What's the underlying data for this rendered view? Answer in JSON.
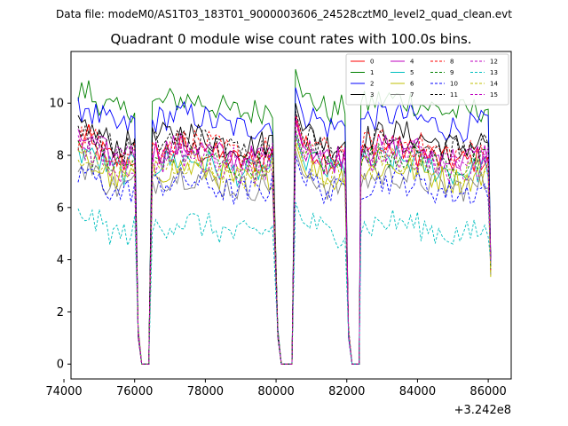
{
  "chart_data": {
    "type": "line",
    "suptitle": "Data file: modeM0/AS1T03_183T01_9000003606_24528cztM0_level2_quad_clean.evt",
    "title": "Quadrant 0 module wise count rates with 100.0s bins.",
    "xlabel": "",
    "ylabel": "",
    "x_offset_label": "+3.242e8",
    "xlim": [
      74200,
      86650
    ],
    "ylim": [
      -0.57,
      11.98
    ],
    "x_ticks": [
      74000,
      76000,
      78000,
      80000,
      82000,
      84000,
      86000
    ],
    "x_tick_labels": [
      "74000",
      "76000",
      "78000",
      "80000",
      "82000",
      "84000",
      "86000"
    ],
    "y_ticks": [
      0,
      2,
      4,
      6,
      8,
      10
    ],
    "y_tick_labels": [
      "0",
      "2",
      "4",
      "6",
      "8",
      "10"
    ],
    "legend_position": "top-right",
    "bins_seconds": 100.0,
    "orbit_segments": [
      {
        "start": 74400,
        "end": 76000,
        "next_gap_end": 76500
      },
      {
        "start": 76500,
        "end": 79950,
        "next_gap_end": 80550
      },
      {
        "start": 80550,
        "end": 81950,
        "next_gap_end": 82400
      },
      {
        "start": 82400,
        "end": 86050,
        "next_gap_end": null
      }
    ],
    "saa_gaps": [
      [
        76100,
        76500
      ],
      [
        80050,
        80500
      ],
      [
        82050,
        82400
      ]
    ],
    "series": [
      {
        "name": "0",
        "color": "#ff0000",
        "dash": "solid",
        "mean": 8.0,
        "peak": 9.4
      },
      {
        "name": "1",
        "color": "#008000",
        "dash": "solid",
        "mean": 9.9,
        "peak": 11.3
      },
      {
        "name": "2",
        "color": "#0000ff",
        "dash": "solid",
        "mean": 9.3,
        "peak": 10.6
      },
      {
        "name": "3",
        "color": "#000000",
        "dash": "solid",
        "mean": 8.6,
        "peak": 10.0
      },
      {
        "name": "4",
        "color": "#bf00bf",
        "dash": "solid",
        "mean": 8.1,
        "peak": 9.5
      },
      {
        "name": "5",
        "color": "#00bfbf",
        "dash": "solid",
        "mean": 7.6,
        "peak": 8.8
      },
      {
        "name": "6",
        "color": "#bfbf00",
        "dash": "solid",
        "mean": 7.3,
        "peak": 8.5
      },
      {
        "name": "7",
        "color": "#808080",
        "dash": "solid",
        "mean": 7.0,
        "peak": 8.2
      },
      {
        "name": "8",
        "color": "#ff0000",
        "dash": "dashed",
        "mean": 8.3,
        "peak": 9.6
      },
      {
        "name": "9",
        "color": "#008000",
        "dash": "dashed",
        "mean": 7.8,
        "peak": 9.0
      },
      {
        "name": "10",
        "color": "#0000ff",
        "dash": "dashed",
        "mean": 6.8,
        "peak": 8.0
      },
      {
        "name": "11",
        "color": "#000000",
        "dash": "dashed",
        "mean": 8.4,
        "peak": 9.7
      },
      {
        "name": "12",
        "color": "#bf00bf",
        "dash": "dashed",
        "mean": 8.0,
        "peak": 9.3
      },
      {
        "name": "13",
        "color": "#00bfbf",
        "dash": "dashed",
        "mean": 5.2,
        "peak": 6.2
      },
      {
        "name": "14",
        "color": "#bfbf00",
        "dash": "dashed",
        "mean": 7.5,
        "peak": 8.7
      },
      {
        "name": "15",
        "color": "#bf00bf",
        "dash": "dashed",
        "mean": 7.7,
        "peak": 8.9
      }
    ]
  }
}
